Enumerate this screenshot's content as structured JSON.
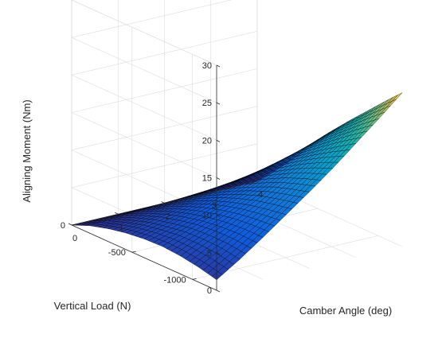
{
  "chart_data": {
    "type": "surface",
    "title": "",
    "xlabel": "Camber Angle (deg)",
    "ylabel": "Vertical Load (N)",
    "zlabel": "Aligning Moment (Nm)",
    "xlim": [
      0,
      4
    ],
    "ylim": [
      -1200,
      0
    ],
    "zlim": [
      0,
      30
    ],
    "x_ticks": [
      0,
      1,
      2,
      3,
      4
    ],
    "y_ticks": [
      0,
      -500,
      -1000
    ],
    "z_ticks": [
      0,
      5,
      10,
      15,
      20,
      25,
      30
    ],
    "x_tick_labels": [
      "0",
      "1",
      "2",
      "3",
      "4"
    ],
    "y_tick_labels": [
      "0",
      "-500",
      "-1000"
    ],
    "z_tick_labels": [
      "0",
      "5",
      "10",
      "15",
      "20",
      "25",
      "30"
    ],
    "grid": true,
    "colormap": "parula",
    "surface": {
      "camber_angle": [
        0,
        0.5,
        1,
        1.5,
        2,
        2.5,
        3,
        3.5,
        4
      ],
      "vertical_load": [
        0,
        -150,
        -300,
        -450,
        -600,
        -750,
        -900,
        -1050,
        -1200
      ],
      "aligning_moment": [
        [
          0.0,
          0.0,
          0.0,
          0.0,
          0.0,
          0.0,
          0.0,
          0.0,
          0.0
        ],
        [
          1.0,
          1.2,
          1.4,
          1.6,
          1.8,
          2.0,
          2.2,
          2.4,
          2.6
        ],
        [
          1.7,
          2.1,
          2.6,
          3.0,
          3.4,
          3.9,
          4.3,
          4.8,
          5.2
        ],
        [
          2.2,
          2.9,
          3.6,
          4.3,
          5.0,
          5.8,
          6.5,
          7.3,
          8.1
        ],
        [
          2.5,
          3.4,
          4.4,
          5.4,
          6.4,
          7.5,
          8.6,
          9.7,
          10.9
        ],
        [
          2.6,
          3.8,
          5.0,
          6.3,
          7.6,
          9.0,
          10.4,
          11.9,
          13.4
        ],
        [
          2.4,
          3.9,
          5.4,
          7.0,
          8.7,
          10.4,
          12.1,
          13.9,
          15.8
        ],
        [
          2.0,
          3.8,
          5.6,
          7.5,
          9.5,
          11.6,
          13.7,
          15.9,
          18.2
        ],
        [
          1.4,
          3.4,
          5.6,
          7.9,
          10.2,
          12.6,
          15.2,
          17.8,
          20.5
        ]
      ]
    }
  }
}
